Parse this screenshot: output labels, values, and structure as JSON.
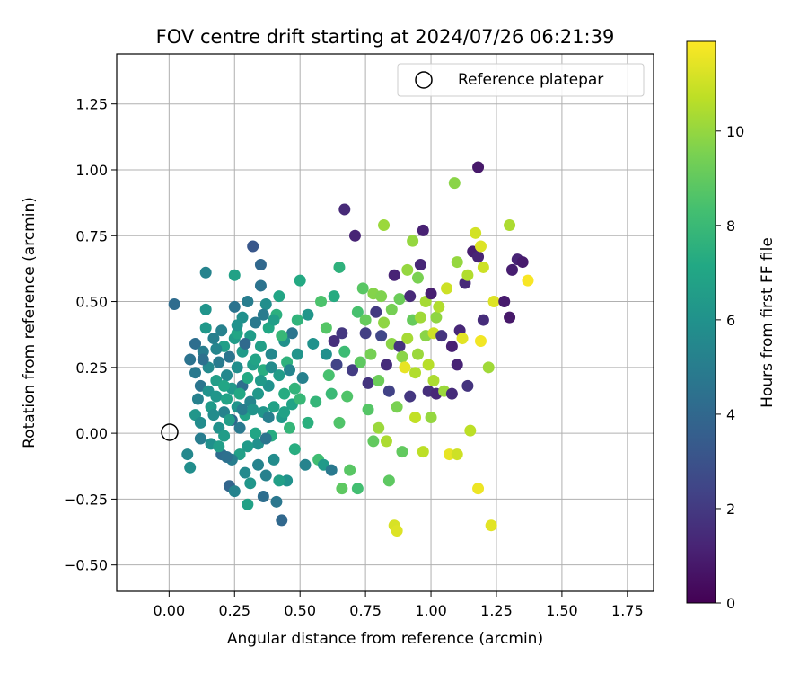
{
  "chart_data": {
    "type": "scatter",
    "title": "FOV centre drift starting at 2024/07/26 06:21:39",
    "xlabel": "Angular distance from reference (arcmin)",
    "ylabel": "Rotation from reference (arcmin)",
    "xlim": [
      -0.2,
      1.85
    ],
    "ylim": [
      -0.6,
      1.44
    ],
    "xticks": [
      0.0,
      0.25,
      0.5,
      0.75,
      1.0,
      1.25,
      1.5,
      1.75
    ],
    "xtick_labels": [
      "0.00",
      "0.25",
      "0.50",
      "0.75",
      "1.00",
      "1.25",
      "1.50",
      "1.75"
    ],
    "yticks": [
      -0.5,
      -0.25,
      0.0,
      0.25,
      0.5,
      0.75,
      1.0,
      1.25
    ],
    "ytick_labels": [
      "−0.50",
      "−0.25",
      "0.00",
      "0.25",
      "0.50",
      "0.75",
      "1.00",
      "1.25"
    ],
    "grid": true,
    "legend_position": "top-right",
    "legend_label": "Reference platepar",
    "reference_point": {
      "x": 0.0,
      "y": 0.0
    },
    "colorbar": {
      "label": "Hours from first FF file",
      "colormap": "viridis",
      "min": 0,
      "max": 11.9,
      "ticks": [
        0,
        2,
        4,
        6,
        8,
        10
      ],
      "tick_labels": [
        "0",
        "2",
        "4",
        "6",
        "8",
        "10"
      ]
    },
    "series": [
      {
        "points": [
          [
            0.02,
            0.49,
            4.2
          ],
          [
            0.07,
            -0.08,
            5.5
          ],
          [
            0.08,
            -0.13,
            5.8
          ],
          [
            0.08,
            0.28,
            4.5
          ],
          [
            0.1,
            0.23,
            4.8
          ],
          [
            0.1,
            0.34,
            4.3
          ],
          [
            0.11,
            0.13,
            5.2
          ],
          [
            0.1,
            0.07,
            6.2
          ],
          [
            0.12,
            0.04,
            5.7
          ],
          [
            0.12,
            0.18,
            4.6
          ],
          [
            0.13,
            0.31,
            5.0
          ],
          [
            0.14,
            0.61,
            5.3
          ],
          [
            0.14,
            0.47,
            6.1
          ],
          [
            0.14,
            0.4,
            6.3
          ],
          [
            0.15,
            0.25,
            5.6
          ],
          [
            0.15,
            0.16,
            6.0
          ],
          [
            0.16,
            0.1,
            6.4
          ],
          [
            0.16,
            -0.04,
            5.9
          ],
          [
            0.17,
            0.36,
            5.1
          ],
          [
            0.18,
            0.2,
            6.6
          ],
          [
            0.18,
            0.14,
            6.2
          ],
          [
            0.19,
            0.02,
            6.0
          ],
          [
            0.19,
            0.27,
            4.9
          ],
          [
            0.2,
            0.39,
            5.2
          ],
          [
            0.2,
            -0.08,
            4.2
          ],
          [
            0.21,
            0.08,
            5.3
          ],
          [
            0.21,
            -0.01,
            6.5
          ],
          [
            0.21,
            0.33,
            6.7
          ],
          [
            0.22,
            0.22,
            5.5
          ],
          [
            0.22,
            0.13,
            6.9
          ],
          [
            0.23,
            -0.2,
            3.9
          ],
          [
            0.23,
            0.29,
            4.6
          ],
          [
            0.24,
            0.17,
            6.3
          ],
          [
            0.24,
            0.05,
            4.0
          ],
          [
            0.25,
            0.36,
            6.5
          ],
          [
            0.25,
            -0.22,
            5.3
          ],
          [
            0.25,
            0.6,
            6.8
          ],
          [
            0.25,
            0.48,
            4.5
          ],
          [
            0.26,
            0.1,
            6.1
          ],
          [
            0.26,
            0.25,
            5.8
          ],
          [
            0.27,
            0.02,
            4.8
          ],
          [
            0.27,
            -0.08,
            6.7
          ],
          [
            0.28,
            0.44,
            5.9
          ],
          [
            0.28,
            0.18,
            4.3
          ],
          [
            0.28,
            0.31,
            6.4
          ],
          [
            0.29,
            -0.15,
            5.6
          ],
          [
            0.29,
            0.07,
            6.9
          ],
          [
            0.3,
            0.5,
            5.0
          ],
          [
            0.3,
            0.21,
            7.2
          ],
          [
            0.3,
            -0.27,
            6.8
          ],
          [
            0.31,
            0.37,
            6.5
          ],
          [
            0.31,
            0.12,
            5.4
          ],
          [
            0.32,
            0.71,
            3.2
          ],
          [
            0.32,
            0.26,
            6.6
          ],
          [
            0.33,
            0.0,
            7.0
          ],
          [
            0.33,
            0.42,
            4.8
          ],
          [
            0.34,
            0.15,
            6.3
          ],
          [
            0.34,
            -0.04,
            5.9
          ],
          [
            0.35,
            0.64,
            4.0
          ],
          [
            0.35,
            0.56,
            4.5
          ],
          [
            0.35,
            0.33,
            6.7
          ],
          [
            0.36,
            -0.24,
            4.3
          ],
          [
            0.36,
            0.08,
            6.2
          ],
          [
            0.36,
            0.24,
            7.4
          ],
          [
            0.37,
            0.49,
            5.8
          ],
          [
            0.37,
            -0.16,
            5.2
          ],
          [
            0.38,
            0.4,
            7.1
          ],
          [
            0.38,
            0.18,
            6.0
          ],
          [
            0.39,
            -0.01,
            7.3
          ],
          [
            0.39,
            0.3,
            5.5
          ],
          [
            0.4,
            0.1,
            6.8
          ],
          [
            0.4,
            -0.1,
            5.7
          ],
          [
            0.41,
            -0.26,
            4.7
          ],
          [
            0.41,
            0.45,
            7.5
          ],
          [
            0.42,
            0.22,
            6.5
          ],
          [
            0.42,
            0.52,
            7.0
          ],
          [
            0.43,
            -0.33,
            4.0
          ],
          [
            0.43,
            0.06,
            6.4
          ],
          [
            0.44,
            0.35,
            5.9
          ],
          [
            0.44,
            0.15,
            7.3
          ],
          [
            0.45,
            -0.18,
            6.0
          ],
          [
            0.45,
            0.27,
            7.6
          ],
          [
            0.46,
            0.02,
            7.8
          ],
          [
            0.47,
            0.38,
            4.6
          ],
          [
            0.47,
            0.11,
            6.9
          ],
          [
            0.48,
            -0.06,
            7.4
          ],
          [
            0.49,
            0.3,
            6.1
          ],
          [
            0.49,
            0.43,
            7.7
          ],
          [
            0.5,
            0.58,
            7.2
          ],
          [
            0.5,
            0.13,
            7.9
          ],
          [
            0.51,
            0.21,
            5.2
          ],
          [
            0.52,
            -0.12,
            5.3
          ],
          [
            0.53,
            0.04,
            7.5
          ],
          [
            0.53,
            0.45,
            6.2
          ],
          [
            0.55,
            0.34,
            6.0
          ],
          [
            0.56,
            0.12,
            7.8
          ],
          [
            0.57,
            -0.1,
            8.2
          ],
          [
            0.58,
            0.5,
            8.5
          ],
          [
            0.59,
            -0.12,
            6.4
          ],
          [
            0.6,
            0.4,
            8.7
          ],
          [
            0.6,
            0.3,
            5.9
          ],
          [
            0.61,
            0.22,
            8.4
          ],
          [
            0.62,
            0.15,
            8.0
          ],
          [
            0.62,
            -0.14,
            4.8
          ],
          [
            0.63,
            0.52,
            7.3
          ],
          [
            0.63,
            0.35,
            1.6
          ],
          [
            0.64,
            0.26,
            2.4
          ],
          [
            0.65,
            0.63,
            7.6
          ],
          [
            0.65,
            0.04,
            8.6
          ],
          [
            0.66,
            -0.21,
            8.9
          ],
          [
            0.66,
            0.38,
            1.9
          ],
          [
            0.67,
            0.85,
            1.4
          ],
          [
            0.67,
            0.31,
            8.1
          ],
          [
            0.68,
            0.14,
            8.6
          ],
          [
            0.69,
            -0.14,
            8.8
          ],
          [
            0.7,
            0.24,
            2.1
          ],
          [
            0.71,
            0.75,
            1.2
          ],
          [
            0.72,
            0.46,
            8.4
          ],
          [
            0.72,
            -0.21,
            8.3
          ],
          [
            0.73,
            0.27,
            8.9
          ],
          [
            0.74,
            0.55,
            8.8
          ],
          [
            0.75,
            0.43,
            9.1
          ],
          [
            0.75,
            0.38,
            2.2
          ],
          [
            0.76,
            0.09,
            8.7
          ],
          [
            0.76,
            0.19,
            1.8
          ],
          [
            0.77,
            0.3,
            9.4
          ],
          [
            0.78,
            0.53,
            9.7
          ],
          [
            0.78,
            -0.03,
            9.0
          ],
          [
            0.79,
            0.46,
            2.0
          ],
          [
            0.8,
            0.2,
            9.2
          ],
          [
            0.8,
            0.02,
            10.1
          ],
          [
            0.81,
            0.37,
            2.5
          ],
          [
            0.81,
            0.52,
            9.6
          ],
          [
            0.82,
            0.79,
            10.1
          ],
          [
            0.82,
            0.42,
            9.9
          ],
          [
            0.83,
            0.26,
            1.5
          ],
          [
            0.83,
            -0.03,
            10.4
          ],
          [
            0.84,
            0.16,
            2.3
          ],
          [
            0.84,
            -0.18,
            8.9
          ],
          [
            0.85,
            0.47,
            9.4
          ],
          [
            0.85,
            0.34,
            9.8
          ],
          [
            0.86,
            0.6,
            1.2
          ],
          [
            0.86,
            -0.35,
            11.2
          ],
          [
            0.87,
            -0.37,
            11.3
          ],
          [
            0.87,
            0.1,
            9.5
          ],
          [
            0.88,
            0.33,
            1.7
          ],
          [
            0.88,
            0.51,
            9.2
          ],
          [
            0.89,
            0.29,
            9.8
          ],
          [
            0.89,
            -0.07,
            9.0
          ],
          [
            0.9,
            0.25,
            11.5
          ],
          [
            0.91,
            0.36,
            10.3
          ],
          [
            0.91,
            0.62,
            10.0
          ],
          [
            0.92,
            0.52,
            1.4
          ],
          [
            0.92,
            0.14,
            1.9
          ],
          [
            0.93,
            0.73,
            10.0
          ],
          [
            0.93,
            0.43,
            9.1
          ],
          [
            0.94,
            0.06,
            10.8
          ],
          [
            0.94,
            0.23,
            10.5
          ],
          [
            0.95,
            0.59,
            9.5
          ],
          [
            0.95,
            0.3,
            10.1
          ],
          [
            0.96,
            0.64,
            1.3
          ],
          [
            0.96,
            0.44,
            10.2
          ],
          [
            0.97,
            0.77,
            1.1
          ],
          [
            0.97,
            -0.07,
            10.7
          ],
          [
            0.98,
            0.37,
            9.8
          ],
          [
            0.98,
            0.5,
            10.3
          ],
          [
            0.99,
            0.26,
            10.6
          ],
          [
            0.99,
            0.16,
            1.6
          ],
          [
            1.0,
            0.53,
            1.0
          ],
          [
            1.0,
            0.06,
            10.0
          ],
          [
            1.01,
            0.38,
            11.0
          ],
          [
            1.01,
            0.2,
            10.4
          ],
          [
            1.02,
            0.44,
            9.9
          ],
          [
            1.02,
            0.15,
            1.3
          ],
          [
            1.03,
            0.48,
            10.5
          ],
          [
            1.04,
            0.37,
            1.8
          ],
          [
            1.05,
            0.16,
            10.1
          ],
          [
            1.06,
            0.55,
            11.0
          ],
          [
            1.07,
            -0.08,
            11.5
          ],
          [
            1.08,
            0.33,
            1.1
          ],
          [
            1.08,
            0.15,
            1.5
          ],
          [
            1.09,
            0.95,
            9.8
          ],
          [
            1.1,
            0.26,
            1.2
          ],
          [
            1.1,
            0.65,
            10.0
          ],
          [
            1.1,
            -0.08,
            11.0
          ],
          [
            1.11,
            0.39,
            1.3
          ],
          [
            1.12,
            0.36,
            11.4
          ],
          [
            1.13,
            0.57,
            1.4
          ],
          [
            1.14,
            0.18,
            1.8
          ],
          [
            1.14,
            0.6,
            10.5
          ],
          [
            1.15,
            0.01,
            10.7
          ],
          [
            1.16,
            0.69,
            1.0
          ],
          [
            1.17,
            0.76,
            11.1
          ],
          [
            1.18,
            0.67,
            1.2
          ],
          [
            1.18,
            1.01,
            0.8
          ],
          [
            1.18,
            -0.21,
            11.6
          ],
          [
            1.19,
            0.71,
            11.3
          ],
          [
            1.19,
            0.35,
            11.7
          ],
          [
            1.2,
            0.63,
            11.0
          ],
          [
            1.2,
            0.43,
            1.5
          ],
          [
            1.22,
            0.25,
            10.2
          ],
          [
            1.23,
            -0.35,
            11.4
          ],
          [
            1.24,
            0.5,
            11.3
          ],
          [
            1.28,
            0.5,
            0.9
          ],
          [
            1.3,
            0.44,
            0.8
          ],
          [
            1.3,
            0.79,
            10.4
          ],
          [
            1.31,
            0.62,
            1.0
          ],
          [
            1.33,
            0.66,
            1.2
          ],
          [
            1.35,
            0.65,
            0.9
          ],
          [
            1.37,
            0.58,
            11.8
          ],
          [
            0.12,
            -0.02,
            5.0
          ],
          [
            0.13,
            0.28,
            4.4
          ],
          [
            0.17,
            0.07,
            5.7
          ],
          [
            0.19,
            -0.05,
            6.6
          ],
          [
            0.24,
            -0.1,
            5.0
          ],
          [
            0.26,
            0.38,
            7.0
          ],
          [
            0.29,
            0.34,
            4.1
          ],
          [
            0.31,
            -0.19,
            6.2
          ],
          [
            0.33,
            0.28,
            6.9
          ],
          [
            0.38,
            0.06,
            5.1
          ],
          [
            0.4,
            0.43,
            6.6
          ],
          [
            0.42,
            -0.18,
            6.7
          ],
          [
            0.46,
            0.24,
            5.4
          ],
          [
            0.48,
            0.17,
            7.7
          ],
          [
            0.26,
            0.41,
            6.0
          ],
          [
            0.28,
            0.09,
            5.0
          ],
          [
            0.34,
            -0.12,
            5.3
          ],
          [
            0.36,
            0.45,
            4.9
          ],
          [
            0.44,
            0.08,
            6.8
          ],
          [
            0.22,
            -0.09,
            4.4
          ],
          [
            0.18,
            0.32,
            5.4
          ],
          [
            0.21,
            0.18,
            7.0
          ],
          [
            0.23,
            0.05,
            6.6
          ],
          [
            0.35,
            0.2,
            6.4
          ],
          [
            0.39,
            0.25,
            5.7
          ],
          [
            0.3,
            -0.05,
            6.4
          ],
          [
            0.27,
            0.15,
            7.1
          ],
          [
            0.43,
            0.37,
            7.9
          ],
          [
            0.37,
            -0.02,
            4.6
          ],
          [
            0.32,
            0.09,
            6.1
          ]
        ]
      }
    ]
  }
}
